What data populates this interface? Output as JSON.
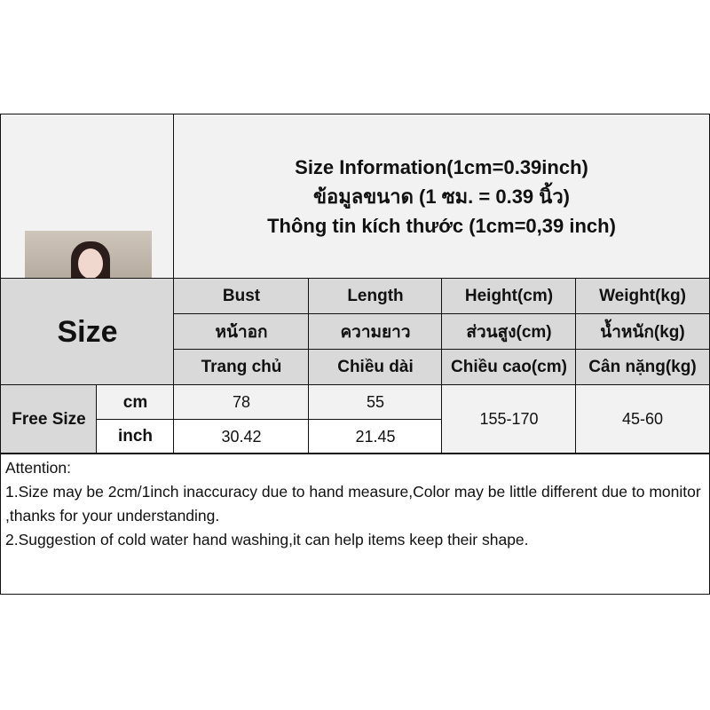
{
  "title": {
    "line1": "Size Information(1cm=0.39inch)",
    "line2": "ข้อมูลขนาด (1 ซม. = 0.39 นิ้ว)",
    "line3": "Thông tin kích thước (1cm=0,39 inch)"
  },
  "size_label": "Size",
  "columns": [
    {
      "en": "Bust",
      "th": "หน้าอก",
      "vi": "Trang chủ"
    },
    {
      "en": "Length",
      "th": "ความยาว",
      "vi": "Chiều dài"
    },
    {
      "en": "Height(cm)",
      "th": "ส่วนสูง(cm)",
      "vi": "Chiều cao(cm)"
    },
    {
      "en": "Weight(kg)",
      "th": "น้ำหนัก(kg)",
      "vi": "Cân nặng(kg)"
    }
  ],
  "row": {
    "size": "Free Size",
    "cm_label": "cm",
    "inch_label": "inch",
    "bust_cm": "78",
    "length_cm": "55",
    "bust_inch": "30.42",
    "length_inch": "21.45",
    "height": "155-170",
    "weight": "45-60"
  },
  "attention": {
    "heading": "Attention:",
    "note1": "1.Size may be 2cm/1inch inaccuracy due to hand measure,Color may be little different due to monitor ,thanks for your understanding.",
    "note2": "2.Suggestion of cold water hand washing,it can help items keep their shape."
  }
}
